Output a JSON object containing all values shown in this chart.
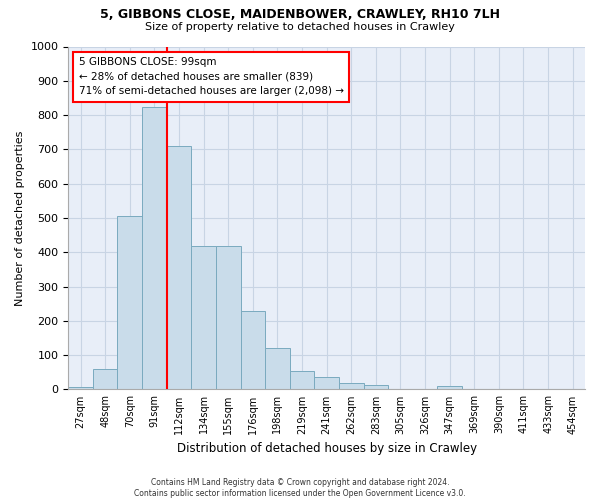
{
  "title1": "5, GIBBONS CLOSE, MAIDENBOWER, CRAWLEY, RH10 7LH",
  "title2": "Size of property relative to detached houses in Crawley",
  "xlabel": "Distribution of detached houses by size in Crawley",
  "ylabel": "Number of detached properties",
  "categories": [
    "27sqm",
    "48sqm",
    "70sqm",
    "91sqm",
    "112sqm",
    "134sqm",
    "155sqm",
    "176sqm",
    "198sqm",
    "219sqm",
    "241sqm",
    "262sqm",
    "283sqm",
    "305sqm",
    "326sqm",
    "347sqm",
    "369sqm",
    "390sqm",
    "411sqm",
    "433sqm",
    "454sqm"
  ],
  "values": [
    8,
    60,
    505,
    825,
    710,
    418,
    418,
    230,
    120,
    55,
    35,
    18,
    12,
    0,
    0,
    10,
    0,
    0,
    0,
    0,
    0
  ],
  "bar_color": "#c9dcea",
  "bar_edge_color": "#7aaabf",
  "red_line_index": 4,
  "annotation_text": "5 GIBBONS CLOSE: 99sqm\n← 28% of detached houses are smaller (839)\n71% of semi-detached houses are larger (2,098) →",
  "annotation_box_color": "white",
  "annotation_box_edge_color": "red",
  "footer": "Contains HM Land Registry data © Crown copyright and database right 2024.\nContains public sector information licensed under the Open Government Licence v3.0.",
  "ylim": [
    0,
    1000
  ],
  "yticks": [
    0,
    100,
    200,
    300,
    400,
    500,
    600,
    700,
    800,
    900,
    1000
  ],
  "grid_color": "#c8d4e4",
  "bg_color": "#e8eef8"
}
